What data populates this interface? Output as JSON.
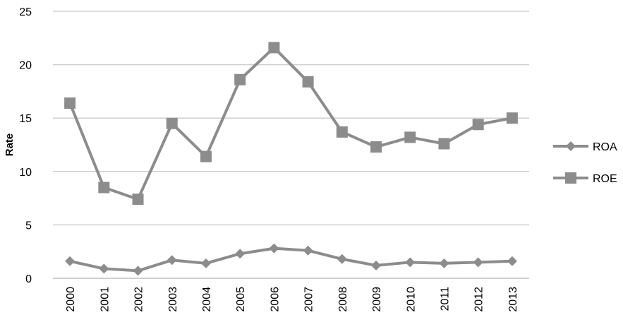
{
  "chart_data": {
    "type": "line",
    "title": "",
    "xlabel": "",
    "ylabel": "Rate",
    "ylim": [
      0,
      25
    ],
    "yticks": [
      0,
      5,
      10,
      15,
      20,
      25
    ],
    "grid": "horizontal",
    "legend_position": "right",
    "categories": [
      "2000",
      "2001",
      "2002",
      "2003",
      "2004",
      "2005",
      "2006",
      "2007",
      "2008",
      "2009",
      "2010",
      "2011",
      "2012",
      "2013"
    ],
    "series": [
      {
        "name": "ROA",
        "marker": "diamond",
        "color": "#8c8c8c",
        "values": [
          1.6,
          0.9,
          0.7,
          1.7,
          1.4,
          2.3,
          2.8,
          2.6,
          1.8,
          1.2,
          1.5,
          1.4,
          1.5,
          1.6
        ]
      },
      {
        "name": "ROE",
        "marker": "square",
        "color": "#8c8c8c",
        "values": [
          16.4,
          8.5,
          7.4,
          14.5,
          11.4,
          18.6,
          21.6,
          18.4,
          13.7,
          12.3,
          13.2,
          12.6,
          14.4,
          15.0
        ]
      }
    ]
  }
}
